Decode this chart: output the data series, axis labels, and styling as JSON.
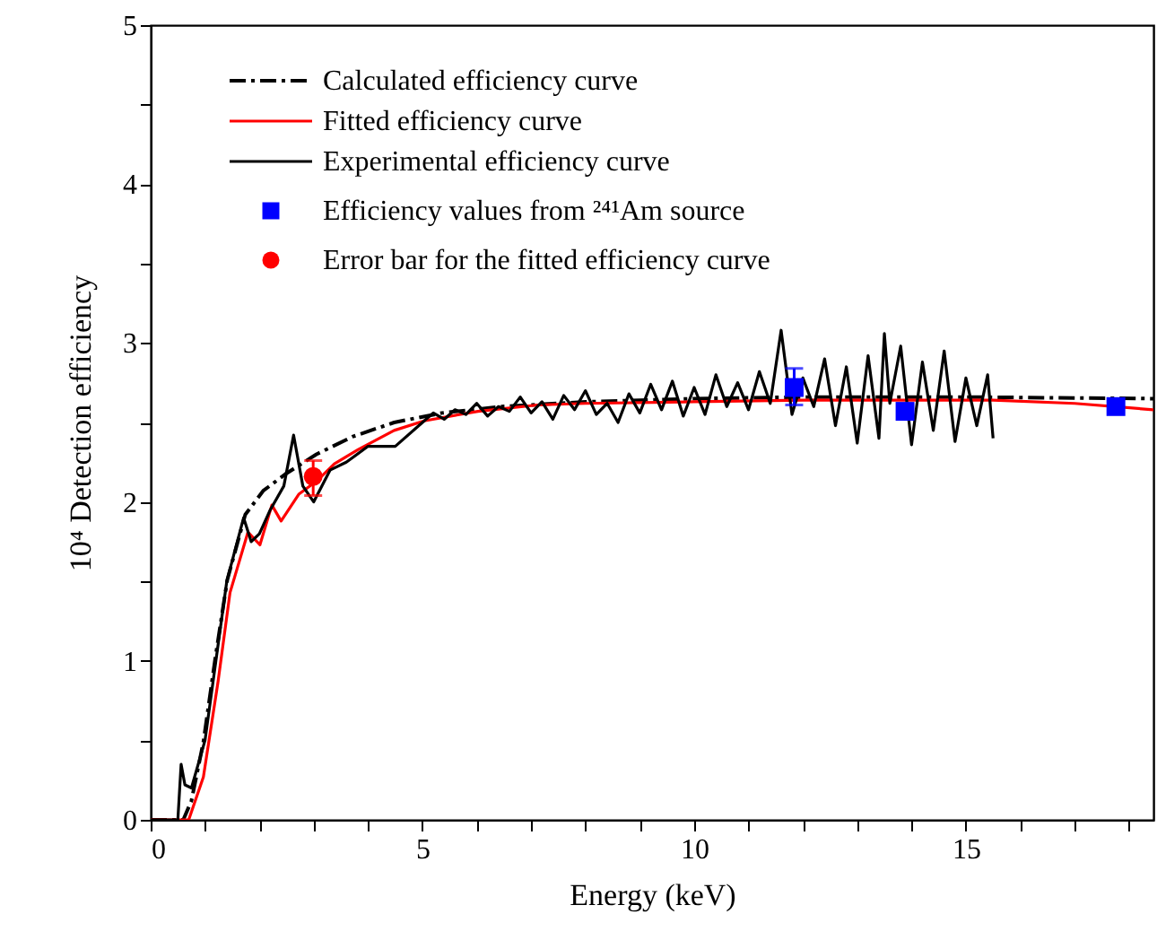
{
  "chart_data": {
    "type": "line",
    "xlabel": "Energy (keV)",
    "ylabel": "10⁴ Detection efficiency",
    "xlim": [
      0,
      18.45
    ],
    "ylim": [
      0,
      5
    ],
    "xticks": [
      0,
      {
        "value": 1,
        "label": null
      },
      {
        "value": 2,
        "label": null
      },
      {
        "value": 3,
        "label": null
      },
      {
        "value": 4,
        "label": null
      },
      5,
      {
        "value": 6,
        "label": null
      },
      {
        "value": 7,
        "label": null
      },
      {
        "value": 8,
        "label": null
      },
      {
        "value": 9,
        "label": null
      },
      10,
      {
        "value": 11,
        "label": null
      },
      {
        "value": 12,
        "label": null
      },
      {
        "value": 13,
        "label": null
      },
      {
        "value": 14,
        "label": null
      },
      15,
      {
        "value": 16,
        "label": null
      },
      {
        "value": 17,
        "label": null
      },
      {
        "value": 18,
        "label": null
      }
    ],
    "yticks": [
      0,
      {
        "value": 0.5,
        "label": null
      },
      1,
      {
        "value": 1.5,
        "label": null
      },
      2,
      {
        "value": 2.5,
        "label": null
      },
      3,
      {
        "value": 3.5,
        "label": null
      },
      4,
      {
        "value": 4.5,
        "label": null
      },
      5
    ],
    "legend": "top left",
    "series": [
      {
        "name": "Calculated efficiency curve",
        "color": "#000000",
        "line_style": "dashed",
        "x": [
          0,
          0.6,
          0.75,
          0.97,
          1.19,
          1.41,
          1.74,
          2.07,
          2.5,
          3.05,
          3.71,
          4.48,
          5.36,
          6.46,
          8,
          9,
          10,
          12,
          15,
          18.45
        ],
        "values": [
          0,
          0,
          0.12,
          0.49,
          1.02,
          1.51,
          1.92,
          2.07,
          2.18,
          2.3,
          2.41,
          2.5,
          2.56,
          2.6,
          2.63,
          2.64,
          2.65,
          2.66,
          2.66,
          2.65
        ]
      },
      {
        "name": "Fitted efficiency curve",
        "color": "#ff0000",
        "line_style": "solid",
        "x": [
          0,
          0.7,
          0.97,
          1.24,
          1.46,
          1.79,
          2.01,
          2.23,
          2.4,
          2.73,
          3.05,
          3.38,
          3.82,
          4.48,
          5.03,
          6.02,
          7.12,
          8,
          10,
          12,
          15.5,
          17,
          18.45
        ],
        "values": [
          0,
          0,
          0.27,
          0.87,
          1.43,
          1.81,
          1.73,
          1.98,
          1.88,
          2.05,
          2.13,
          2.24,
          2.33,
          2.45,
          2.51,
          2.57,
          2.61,
          2.62,
          2.63,
          2.64,
          2.64,
          2.62,
          2.58
        ]
      },
      {
        "name": "Experimental efficiency curve",
        "color": "#000000",
        "line_style": "solid",
        "x": [
          0,
          0.5,
          0.56,
          0.63,
          0.75,
          1.0,
          1.2,
          1.4,
          1.71,
          1.85,
          2.0,
          2.2,
          2.45,
          2.63,
          2.8,
          3.0,
          3.3,
          3.6,
          4.0,
          4.5,
          5.0,
          5.2,
          5.4,
          5.6,
          5.8,
          6.0,
          6.2,
          6.4,
          6.6,
          6.8,
          7.0,
          7.2,
          7.4,
          7.6,
          7.8,
          8.0,
          8.2,
          8.4,
          8.6,
          8.8,
          9.0,
          9.2,
          9.4,
          9.6,
          9.8,
          10.0,
          10.2,
          10.4,
          10.6,
          10.8,
          11.0,
          11.2,
          11.4,
          11.6,
          11.8,
          12.0,
          12.2,
          12.4,
          12.6,
          12.8,
          13.0,
          13.2,
          13.4,
          13.5,
          13.6,
          13.8,
          14.0,
          14.2,
          14.4,
          14.6,
          14.8,
          15.0,
          15.2,
          15.4,
          15.5
        ],
        "values": [
          0,
          0,
          0.35,
          0.22,
          0.2,
          0.5,
          1.0,
          1.5,
          1.9,
          1.75,
          1.8,
          1.95,
          2.1,
          2.42,
          2.1,
          2.0,
          2.2,
          2.25,
          2.35,
          2.35,
          2.5,
          2.56,
          2.52,
          2.58,
          2.55,
          2.62,
          2.54,
          2.6,
          2.57,
          2.66,
          2.56,
          2.63,
          2.52,
          2.67,
          2.58,
          2.7,
          2.55,
          2.62,
          2.5,
          2.68,
          2.56,
          2.74,
          2.58,
          2.76,
          2.54,
          2.72,
          2.55,
          2.8,
          2.6,
          2.75,
          2.58,
          2.82,
          2.62,
          3.08,
          2.55,
          2.78,
          2.6,
          2.9,
          2.48,
          2.85,
          2.37,
          2.92,
          2.4,
          3.06,
          2.62,
          2.98,
          2.36,
          2.88,
          2.45,
          2.95,
          2.38,
          2.78,
          2.48,
          2.8,
          2.4
        ]
      },
      {
        "name": "Efficiency values from ²⁴¹Am source",
        "type": "scatter",
        "color": "#0000ff",
        "marker": "square",
        "x": [
          11.84,
          13.88,
          17.76
        ],
        "values": [
          2.72,
          2.57,
          2.6
        ],
        "errors": [
          [
            2.61,
            2.84
          ],
          null,
          null
        ]
      },
      {
        "name": "Error bar for the fitted efficiency curve",
        "type": "scatter",
        "color": "#ff0000",
        "marker": "circle",
        "x": [
          2.99
        ],
        "values": [
          2.16
        ],
        "errors": [
          [
            2.04,
            2.26
          ]
        ]
      }
    ]
  }
}
